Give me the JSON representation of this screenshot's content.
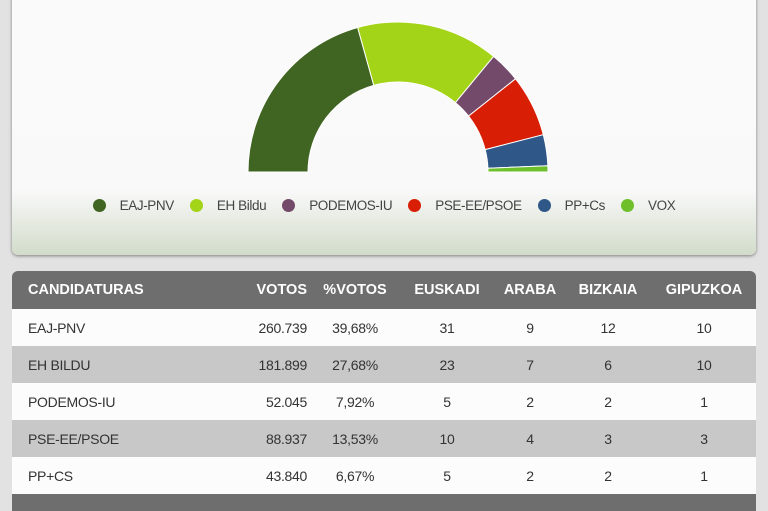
{
  "chart_data": {
    "type": "pie",
    "subtype": "semicircle-donut",
    "total_seats": 75,
    "series": [
      {
        "name": "EAJ-PNV",
        "seats": 31,
        "color": "#406421"
      },
      {
        "name": "EH Bildu",
        "seats": 23,
        "color": "#a4d417"
      },
      {
        "name": "PODEMOS-IU",
        "seats": 5,
        "color": "#744a6a"
      },
      {
        "name": "PSE-EE/PSOE",
        "seats": 10,
        "color": "#d81e05"
      },
      {
        "name": "PP+Cs",
        "seats": 5,
        "color": "#2f5889"
      },
      {
        "name": "VOX",
        "seats": 1,
        "color": "#6dc02b"
      }
    ],
    "legend_placement": "bottom"
  },
  "table": {
    "headers": [
      "CANDIDATURAS",
      "VOTOS",
      "%VOTOS",
      "EUSKADI",
      "ARABA",
      "BIZKAIA",
      "GIPUZKOA"
    ],
    "rows": [
      [
        "EAJ-PNV",
        "260.739",
        "39,68%",
        "31",
        "9",
        "12",
        "10"
      ],
      [
        "EH BILDU",
        "181.899",
        "27,68%",
        "23",
        "7",
        "6",
        "10"
      ],
      [
        "PODEMOS-IU",
        "52.045",
        "7,92%",
        "5",
        "2",
        "2",
        "1"
      ],
      [
        "PSE-EE/PSOE",
        "88.937",
        "13,53%",
        "10",
        "4",
        "3",
        "3"
      ],
      [
        "PP+CS",
        "43.840",
        "6,67%",
        "5",
        "2",
        "2",
        "1"
      ]
    ]
  }
}
